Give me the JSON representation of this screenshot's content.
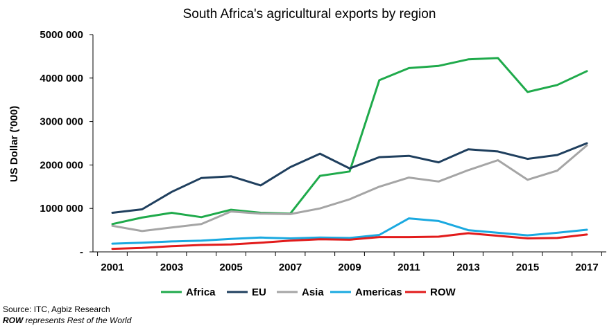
{
  "chart_data": {
    "type": "line",
    "title": "South Africa's agricultural exports by region",
    "ylabel": "US Dollar  ('000)",
    "xlabel": "",
    "ylim": [
      0,
      5000000
    ],
    "yticks": [
      0,
      1000000,
      2000000,
      3000000,
      4000000,
      5000000
    ],
    "ytick_labels": [
      "-",
      "1000 000",
      "2000 000",
      "3000 000",
      "4000 000",
      "5000 000"
    ],
    "x": [
      2001,
      2002,
      2003,
      2004,
      2005,
      2006,
      2007,
      2008,
      2009,
      2010,
      2011,
      2012,
      2013,
      2014,
      2015,
      2016,
      2017
    ],
    "xtick_labels": [
      "2001",
      "2003",
      "2005",
      "2007",
      "2009",
      "2011",
      "2013",
      "2015",
      "2017"
    ],
    "grid": false,
    "legend_position": "bottom",
    "series": [
      {
        "name": "Africa",
        "color": "#1faa4b",
        "values": [
          640000,
          790000,
          900000,
          800000,
          970000,
          900000,
          880000,
          1750000,
          1850000,
          3950000,
          4230000,
          4280000,
          4430000,
          4460000,
          3680000,
          3840000,
          4160000
        ]
      },
      {
        "name": "EU",
        "color": "#1f3f5e",
        "values": [
          900000,
          980000,
          1380000,
          1700000,
          1740000,
          1530000,
          1950000,
          2260000,
          1920000,
          2180000,
          2210000,
          2060000,
          2360000,
          2310000,
          2140000,
          2230000,
          2500000
        ]
      },
      {
        "name": "Asia",
        "color": "#a5a5a5",
        "values": [
          600000,
          480000,
          560000,
          640000,
          930000,
          880000,
          870000,
          1000000,
          1210000,
          1500000,
          1710000,
          1620000,
          1880000,
          2110000,
          1660000,
          1870000,
          2450000
        ]
      },
      {
        "name": "Americas",
        "color": "#1aa9e0",
        "values": [
          190000,
          210000,
          240000,
          260000,
          300000,
          330000,
          310000,
          330000,
          320000,
          390000,
          770000,
          710000,
          500000,
          440000,
          380000,
          440000,
          510000
        ]
      },
      {
        "name": "ROW",
        "color": "#e21b1b",
        "values": [
          70000,
          90000,
          130000,
          160000,
          170000,
          210000,
          260000,
          290000,
          280000,
          340000,
          340000,
          350000,
          430000,
          370000,
          310000,
          320000,
          400000
        ]
      }
    ]
  },
  "notes": {
    "source": "Source: ITC, Agbiz Research",
    "row_abbr": "ROW",
    "row_text": " represents Rest of the World"
  }
}
